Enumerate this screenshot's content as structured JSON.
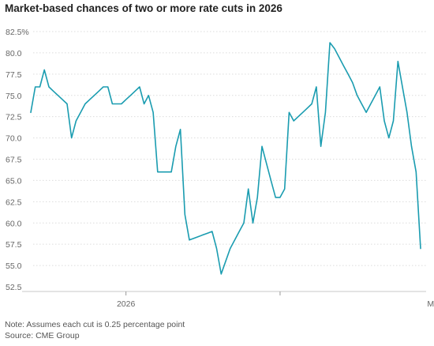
{
  "title": "Market-based chances of two or more rate cuts in 2026",
  "note": "Note: Assumes each cut is 0.25 percentage point",
  "source": "Source: CME Group",
  "colors": {
    "line": "#1a9cb0",
    "grid": "#dcdcdc",
    "text": "#666666"
  },
  "chart_data": {
    "type": "line",
    "title": "Market-based chances of two or more rate cuts in 2026",
    "xlabel": "",
    "ylabel": "",
    "ylim": [
      52.5,
      82.5
    ],
    "yticks": [
      "82.5%",
      "80.0",
      "77.5",
      "75.0",
      "72.5",
      "70.0",
      "67.5",
      "65.0",
      "62.5",
      "60.0",
      "57.5",
      "55.0",
      "52.5"
    ],
    "xticks": [
      {
        "label": "2026",
        "index": 21
      },
      {
        "label": "",
        "index": 55
      },
      {
        "label": "March",
        "index": 90
      }
    ],
    "grid": "horizontal",
    "legend": "none",
    "series": [
      {
        "values": [
          73,
          76,
          76,
          78,
          76,
          75.5,
          75,
          74.5,
          74,
          70,
          72,
          73,
          74,
          74.5,
          75,
          75.5,
          76,
          76,
          74,
          74,
          74,
          74.5,
          75,
          75.5,
          76,
          74,
          75,
          73,
          66,
          66,
          66,
          66,
          69,
          71,
          61,
          58,
          58.2,
          58.4,
          58.6,
          58.8,
          59,
          57,
          54,
          55.5,
          57,
          58,
          59,
          60,
          64,
          60,
          63,
          69,
          67,
          65,
          63,
          63,
          64,
          73,
          72,
          72.5,
          73,
          73.5,
          74,
          76,
          69,
          73,
          81.2,
          80.5,
          79.5,
          78.5,
          77.5,
          76.5,
          75,
          74,
          73,
          74,
          75,
          76,
          72,
          70,
          72,
          79,
          76,
          73,
          69,
          66,
          57
        ]
      }
    ]
  }
}
